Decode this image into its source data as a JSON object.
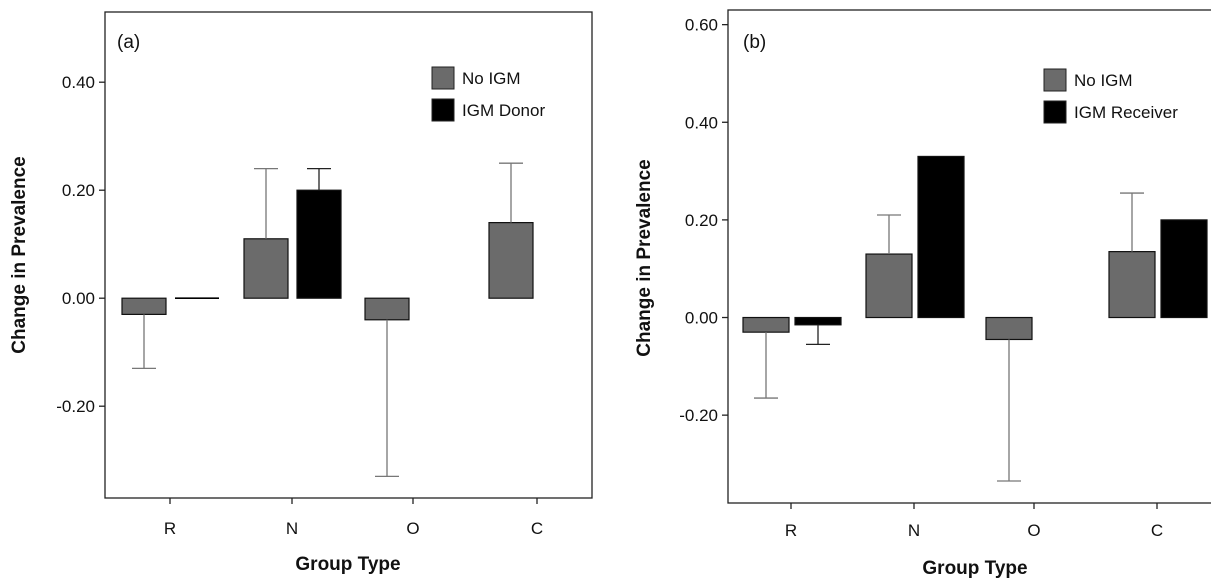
{
  "chart_data": [
    {
      "type": "bar",
      "panel_label": "(a)",
      "xlabel": "Group Type",
      "ylabel": "Change in Prevalence",
      "categories": [
        "R",
        "N",
        "O",
        "C"
      ],
      "ylim": [
        -0.37,
        0.53
      ],
      "yticks": [
        -0.2,
        0.0,
        0.2,
        0.4
      ],
      "ytick_labels": [
        "-0.20",
        "0.00",
        "0.20",
        "0.40"
      ],
      "grid": false,
      "legend_position": "top-right",
      "series": [
        {
          "name": "No IGM",
          "color": "#6b6b6b",
          "values": [
            -0.03,
            0.11,
            -0.04,
            0.14
          ],
          "error": [
            0.1,
            0.13,
            0.29,
            0.11
          ]
        },
        {
          "name": "IGM Donor",
          "color": "#000000",
          "values": [
            0.0,
            0.2,
            null,
            null
          ],
          "error": [
            0.0,
            0.04,
            null,
            null
          ]
        }
      ]
    },
    {
      "type": "bar",
      "panel_label": "(b)",
      "xlabel": "Group Type",
      "ylabel": "Change in Prevalence",
      "categories": [
        "R",
        "N",
        "O",
        "C"
      ],
      "ylim": [
        -0.38,
        0.63
      ],
      "yticks": [
        -0.2,
        0.0,
        0.2,
        0.4,
        0.6
      ],
      "ytick_labels": [
        "-0.20",
        "0.00",
        "0.20",
        "0.40",
        "0.60"
      ],
      "grid": false,
      "legend_position": "top-right",
      "series": [
        {
          "name": "No IGM",
          "color": "#6b6b6b",
          "values": [
            -0.03,
            0.13,
            -0.045,
            0.135
          ],
          "error": [
            0.135,
            0.08,
            0.29,
            0.12
          ]
        },
        {
          "name": "IGM Receiver",
          "color": "#000000",
          "values": [
            -0.015,
            0.33,
            null,
            0.2
          ],
          "error": [
            0.04,
            0.0,
            null,
            0.0
          ]
        }
      ]
    }
  ]
}
